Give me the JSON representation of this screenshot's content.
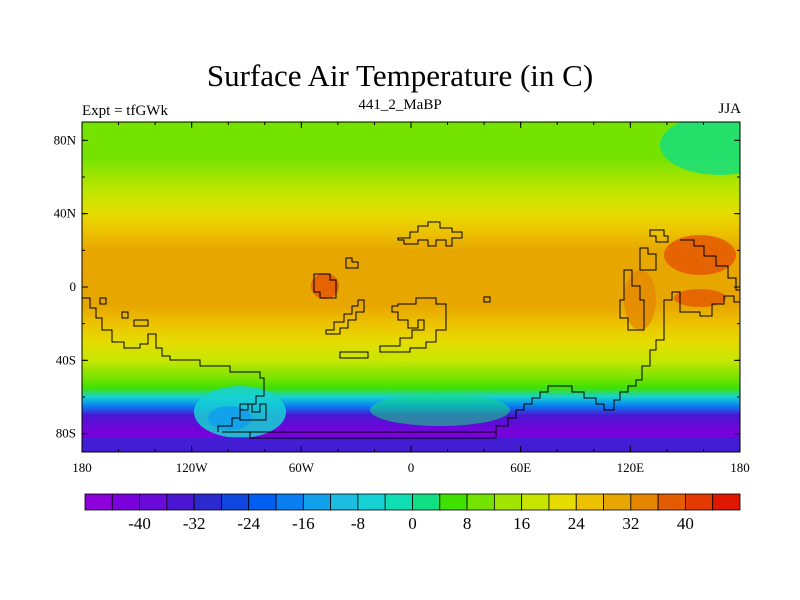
{
  "chart_data": {
    "type": "heatmap",
    "title": "Surface Air Temperature (in C)",
    "left_label": "Expt = tfGWk",
    "center_label": "441_2_MaBP",
    "right_label": "JJA",
    "x_range": [
      -180,
      180
    ],
    "y_range": [
      -90,
      90
    ],
    "x_ticks": [
      {
        "value": -180,
        "label": "180"
      },
      {
        "value": -120,
        "label": "120W"
      },
      {
        "value": -60,
        "label": "60W"
      },
      {
        "value": 0,
        "label": "0"
      },
      {
        "value": 60,
        "label": "60E"
      },
      {
        "value": 120,
        "label": "120E"
      },
      {
        "value": 180,
        "label": "180"
      }
    ],
    "y_ticks": [
      {
        "value": 80,
        "label": "80N"
      },
      {
        "value": 40,
        "label": "40N"
      },
      {
        "value": 0,
        "label": "0"
      },
      {
        "value": -40,
        "label": "40S"
      },
      {
        "value": -80,
        "label": "80S"
      }
    ],
    "latitude_profile": [
      {
        "lat": 90,
        "temp": 8
      },
      {
        "lat": 80,
        "temp": 8
      },
      {
        "lat": 70,
        "temp": 9
      },
      {
        "lat": 60,
        "temp": 13
      },
      {
        "lat": 50,
        "temp": 17
      },
      {
        "lat": 40,
        "temp": 22
      },
      {
        "lat": 30,
        "temp": 26
      },
      {
        "lat": 20,
        "temp": 30
      },
      {
        "lat": 10,
        "temp": 31
      },
      {
        "lat": 0,
        "temp": 30
      },
      {
        "lat": -10,
        "temp": 28
      },
      {
        "lat": -20,
        "temp": 26
      },
      {
        "lat": -30,
        "temp": 22
      },
      {
        "lat": -40,
        "temp": 16
      },
      {
        "lat": -50,
        "temp": 9
      },
      {
        "lat": -55,
        "temp": 4
      },
      {
        "lat": -60,
        "temp": -5
      },
      {
        "lat": -65,
        "temp": -20
      },
      {
        "lat": -70,
        "temp": -33
      },
      {
        "lat": -80,
        "temp": -42
      },
      {
        "lat": -90,
        "temp": -44
      }
    ],
    "colorbar": {
      "min": -48,
      "max": 48,
      "step": 4,
      "colors": [
        "#8c00dc",
        "#7a00dc",
        "#6a0bd9",
        "#4a16d2",
        "#2c29cf",
        "#1045de",
        "#005ef0",
        "#087ef0",
        "#10a0ec",
        "#1bbde0",
        "#17d2d4",
        "#10dfb4",
        "#10df84",
        "#40e000",
        "#74e300",
        "#a2e500",
        "#c6e600",
        "#e6dc00",
        "#ecc200",
        "#e8a600",
        "#e48600",
        "#e45c00",
        "#e43a00",
        "#e01800"
      ],
      "labels": [
        {
          "value": -40,
          "label": "-40"
        },
        {
          "value": -32,
          "label": "-32"
        },
        {
          "value": -24,
          "label": "-24"
        },
        {
          "value": -16,
          "label": "-16"
        },
        {
          "value": -8,
          "label": "-8"
        },
        {
          "value": 0,
          "label": "0"
        },
        {
          "value": 8,
          "label": "8"
        },
        {
          "value": 16,
          "label": "16"
        },
        {
          "value": 24,
          "label": "24"
        },
        {
          "value": 32,
          "label": "32"
        },
        {
          "value": 40,
          "label": "40"
        }
      ]
    }
  }
}
